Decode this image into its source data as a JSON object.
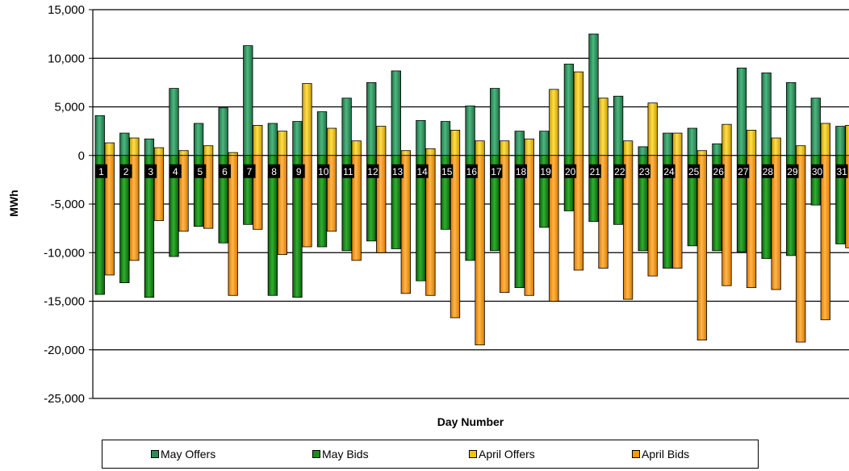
{
  "chart_data": {
    "type": "bar",
    "xlabel": "Day Number",
    "ylabel": "MWh",
    "ylim": [
      -25000,
      15000
    ],
    "y_ticks": [
      15000,
      10000,
      5000,
      0,
      -5000,
      -10000,
      -15000,
      -20000,
      -25000
    ],
    "y_tick_labels": [
      "15,000",
      "10,000",
      "5,000",
      "0",
      "-5,000",
      "-10,000",
      "-15,000",
      "-20,000",
      "-25,000"
    ],
    "grid": true,
    "legend_position": "bottom",
    "categories": [
      "1",
      "2",
      "3",
      "4",
      "5",
      "6",
      "7",
      "8",
      "9",
      "10",
      "11",
      "12",
      "13",
      "14",
      "15",
      "16",
      "17",
      "18",
      "19",
      "20",
      "21",
      "22",
      "23",
      "24",
      "25",
      "26",
      "27",
      "28",
      "29",
      "30",
      "31"
    ],
    "series": [
      {
        "name": "May Offers",
        "color": "#2e8b57",
        "values": [
          4100,
          2300,
          1700,
          6900,
          3300,
          4900,
          11300,
          3300,
          3500,
          4500,
          5900,
          7500,
          8700,
          3600,
          3500,
          5100,
          6900,
          2500,
          2500,
          9400,
          12500,
          6100,
          900,
          2300,
          2800,
          1200,
          9000,
          8500,
          7500,
          5900,
          3000
        ]
      },
      {
        "name": "May Bids",
        "color": "#1a8c1a",
        "values": [
          -14300,
          -13100,
          -14600,
          -10400,
          -7300,
          -9000,
          -7100,
          -14400,
          -14600,
          -9400,
          -9800,
          -8800,
          -9600,
          -12900,
          -7600,
          -10800,
          -9800,
          -13600,
          -7400,
          -5700,
          -6800,
          -7100,
          -9800,
          -11600,
          -9300,
          -9800,
          -9900,
          -10600,
          -10300,
          -5100,
          -9100
        ]
      },
      {
        "name": "April Offers",
        "color": "#f2c400",
        "values": [
          1300,
          1800,
          800,
          500,
          1000,
          300,
          3100,
          2500,
          7400,
          2800,
          1500,
          3000,
          500,
          700,
          2600,
          1500,
          1500,
          1700,
          6800,
          8600,
          5900,
          1500,
          5400,
          2300,
          500,
          3200,
          2600,
          1800,
          1000,
          3300,
          3100
        ]
      },
      {
        "name": "April Bids",
        "color": "#ff9900",
        "values": [
          -12300,
          -10800,
          -6700,
          -7800,
          -7500,
          -14400,
          -7600,
          -10200,
          -9400,
          -7800,
          -10800,
          -10000,
          -14200,
          -14400,
          -16700,
          -19500,
          -14100,
          -14400,
          -15000,
          -11800,
          -11600,
          -14800,
          -12400,
          -11600,
          -19000,
          -13400,
          -13600,
          -13800,
          -19200,
          -16900,
          -9500
        ]
      }
    ]
  }
}
